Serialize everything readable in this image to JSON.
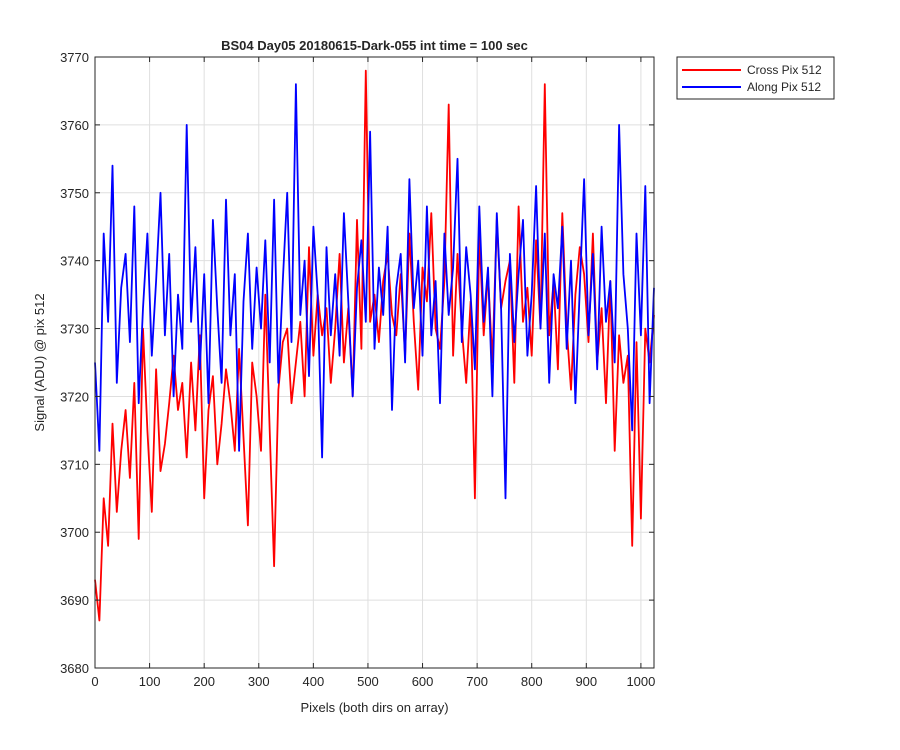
{
  "chart_data": {
    "type": "line",
    "title": "BS04 Day05 20180615-Dark-055 int time = 100 sec",
    "xlabel": "Pixels (both dirs on array)",
    "ylabel": "Signal (ADU) @ pix 512",
    "xlim": [
      0,
      1024
    ],
    "ylim": [
      3680,
      3770
    ],
    "xticks": [
      0,
      100,
      200,
      300,
      400,
      500,
      600,
      700,
      800,
      900,
      1000
    ],
    "yticks": [
      3680,
      3690,
      3700,
      3710,
      3720,
      3730,
      3740,
      3750,
      3760,
      3770
    ],
    "grid": true,
    "legend_position": "outside-top-right",
    "series": [
      {
        "name": "Cross Pix 512",
        "color": "#ff0000",
        "x_step": 8,
        "y": [
          3693,
          3687,
          3705,
          3698,
          3716,
          3703,
          3712,
          3718,
          3708,
          3722,
          3699,
          3730,
          3715,
          3703,
          3724,
          3709,
          3713,
          3719,
          3726,
          3718,
          3722,
          3711,
          3725,
          3715,
          3729,
          3705,
          3718,
          3723,
          3710,
          3716,
          3724,
          3719,
          3712,
          3727,
          3714,
          3701,
          3725,
          3720,
          3712,
          3735,
          3715,
          3695,
          3721,
          3728,
          3730,
          3719,
          3725,
          3731,
          3720,
          3742,
          3726,
          3735,
          3729,
          3733,
          3722,
          3730,
          3741,
          3725,
          3733,
          3720,
          3746,
          3727,
          3768,
          3731,
          3735,
          3728,
          3737,
          3741,
          3732,
          3729,
          3738,
          3726,
          3744,
          3731,
          3721,
          3739,
          3734,
          3747,
          3730,
          3727,
          3737,
          3763,
          3726,
          3741,
          3730,
          3722,
          3734,
          3705,
          3744,
          3729,
          3738,
          3725,
          3746,
          3733,
          3737,
          3740,
          3722,
          3748,
          3731,
          3736,
          3726,
          3743,
          3730,
          3766,
          3729,
          3737,
          3724,
          3747,
          3730,
          3721,
          3735,
          3742,
          3738,
          3728,
          3744,
          3725,
          3733,
          3719,
          3737,
          3712,
          3729,
          3722,
          3726,
          3698,
          3728,
          3702,
          3730,
          3725,
          3732
        ]
      },
      {
        "name": "Along Pix 512",
        "color": "#0000ff",
        "x_step": 8,
        "y": [
          3725,
          3712,
          3744,
          3731,
          3754,
          3722,
          3736,
          3741,
          3728,
          3748,
          3719,
          3733,
          3744,
          3726,
          3737,
          3750,
          3729,
          3741,
          3720,
          3735,
          3727,
          3760,
          3731,
          3742,
          3724,
          3738,
          3719,
          3746,
          3733,
          3722,
          3749,
          3729,
          3738,
          3712,
          3734,
          3744,
          3727,
          3739,
          3730,
          3743,
          3725,
          3749,
          3722,
          3737,
          3750,
          3728,
          3766,
          3732,
          3740,
          3723,
          3745,
          3735,
          3711,
          3742,
          3729,
          3738,
          3726,
          3747,
          3734,
          3720,
          3736,
          3743,
          3731,
          3759,
          3727,
          3739,
          3732,
          3745,
          3718,
          3736,
          3741,
          3725,
          3752,
          3733,
          3740,
          3726,
          3748,
          3729,
          3737,
          3719,
          3744,
          3732,
          3739,
          3755,
          3728,
          3742,
          3735,
          3724,
          3748,
          3731,
          3739,
          3720,
          3747,
          3733,
          3705,
          3741,
          3728,
          3738,
          3746,
          3726,
          3735,
          3751,
          3730,
          3744,
          3722,
          3738,
          3733,
          3745,
          3727,
          3740,
          3719,
          3736,
          3752,
          3729,
          3741,
          3724,
          3745,
          3731,
          3737,
          3725,
          3760,
          3738,
          3730,
          3715,
          3744,
          3729,
          3751,
          3719,
          3736
        ]
      }
    ]
  }
}
